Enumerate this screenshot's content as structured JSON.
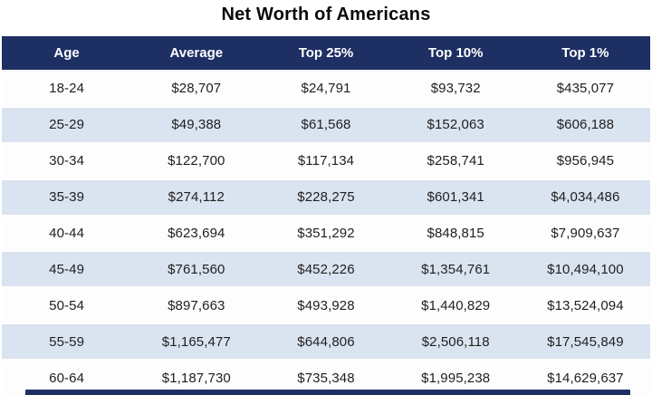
{
  "chart_data": {
    "type": "table",
    "title": "Net Worth of Americans",
    "columns": [
      "Age",
      "Average",
      "Top 25%",
      "Top 10%",
      "Top 1%"
    ],
    "rows": [
      [
        "18-24",
        "$28,707",
        "$24,791",
        "$93,732",
        "$435,077"
      ],
      [
        "25-29",
        "$49,388",
        "$61,568",
        "$152,063",
        "$606,188"
      ],
      [
        "30-34",
        "$122,700",
        "$117,134",
        "$258,741",
        "$956,945"
      ],
      [
        "35-39",
        "$274,112",
        "$228,275",
        "$601,341",
        "$4,034,486"
      ],
      [
        "40-44",
        "$623,694",
        "$351,292",
        "$848,815",
        "$7,909,637"
      ],
      [
        "45-49",
        "$761,560",
        "$452,226",
        "$1,354,761",
        "$10,494,100"
      ],
      [
        "50-54",
        "$897,663",
        "$493,928",
        "$1,440,829",
        "$13,524,094"
      ],
      [
        "55-59",
        "$1,165,477",
        "$644,806",
        "$2,506,118",
        "$17,545,849"
      ],
      [
        "60-64",
        "$1,187,730",
        "$735,348",
        "$1,995,238",
        "$14,629,637"
      ]
    ],
    "layout": {
      "header_position": "top",
      "row_striping": "alternate",
      "column_alignment": "center"
    }
  },
  "colors": {
    "header_bg": "#1e2f63",
    "row_alt_bg": "#dae3f0",
    "header_text": "#ffffff",
    "body_text": "#1f1f1f",
    "title_text": "#0a0a0a",
    "page_bg": "#ffffff"
  }
}
